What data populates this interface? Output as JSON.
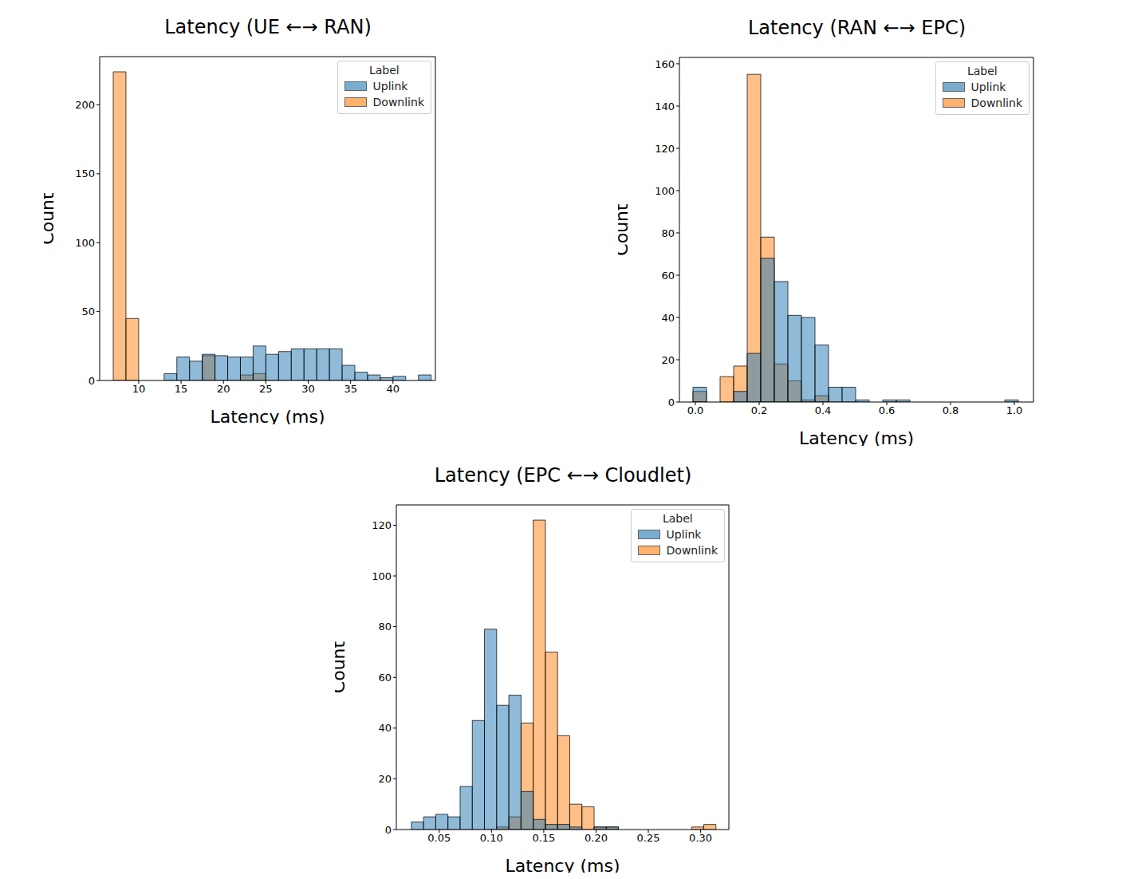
{
  "chart_data": [
    {
      "type": "histogram",
      "title": "Latency (UE ←→ RAN)",
      "x_label": "Latency (ms)",
      "y_label": "Count",
      "legend_title": "Label",
      "legend": "upper right",
      "xlim": [
        5.4,
        45
      ],
      "xticks": [
        10,
        15,
        20,
        25,
        30,
        35,
        40
      ],
      "ylim": [
        0,
        235
      ],
      "yticks": [
        0,
        50,
        100,
        150,
        200
      ],
      "series": [
        {
          "name": "Uplink",
          "color": "#1f77b4",
          "bins": [
            13,
            14.5,
            16,
            17.5,
            19,
            20.5,
            22,
            23.5,
            25,
            26.5,
            28,
            29.5,
            31,
            32.5,
            34,
            35.5,
            37,
            38.5,
            40,
            41.5,
            43,
            44.5
          ],
          "values": [
            5,
            17,
            14,
            19,
            18,
            17,
            17,
            25,
            19,
            21,
            23,
            23,
            23,
            23,
            11,
            6,
            4,
            2,
            3,
            0,
            4
          ]
        },
        {
          "name": "Downlink",
          "color": "#ff7f0e",
          "bins": [
            7,
            8.5,
            10,
            11.5,
            13,
            14.5,
            16,
            17.5,
            19,
            20.5,
            22,
            23.5,
            25
          ],
          "values": [
            224,
            45,
            0,
            0,
            0,
            0,
            0,
            18,
            0,
            0,
            4,
            5
          ]
        }
      ]
    },
    {
      "type": "histogram",
      "title": "Latency (RAN ←→ EPC)",
      "x_label": "Latency (ms)",
      "y_label": "Count",
      "legend_title": "Label",
      "legend": "upper right",
      "xlim": [
        -0.05,
        1.06
      ],
      "xticks": [
        {
          "value": 0,
          "label": "0.0"
        },
        {
          "value": 0.2,
          "label": "0.2"
        },
        {
          "value": 0.4,
          "label": "0.4"
        },
        {
          "value": 0.6,
          "label": "0.6"
        },
        {
          "value": 0.8,
          "label": "0.8"
        },
        {
          "value": 1,
          "label": "1.0"
        }
      ],
      "ylim": [
        0,
        163
      ],
      "yticks": [
        0,
        20,
        40,
        60,
        80,
        100,
        120,
        140,
        160
      ],
      "series": [
        {
          "name": "Uplink",
          "color": "#1f77b4",
          "bins": [
            -0.0075,
            0.035,
            0.0775,
            0.12,
            0.1625,
            0.205,
            0.2475,
            0.29,
            0.3325,
            0.375,
            0.4175,
            0.46,
            0.5025,
            0.545,
            0.5875,
            0.63,
            0.6725,
            0.715,
            0.7575,
            0.8,
            0.8425,
            0.885,
            0.9275,
            0.97,
            1.0125
          ],
          "values": [
            7,
            0,
            0,
            5,
            23,
            68,
            57,
            41,
            40,
            27,
            7,
            7,
            1,
            0,
            1,
            1,
            0,
            0,
            0,
            0,
            0,
            0,
            0,
            1
          ]
        },
        {
          "name": "Downlink",
          "color": "#ff7f0e",
          "bins": [
            -0.0075,
            0.035,
            0.0775,
            0.12,
            0.1625,
            0.205,
            0.2475,
            0.29,
            0.3325,
            0.375,
            0.4175,
            0.46,
            0.5025,
            0.545,
            0.5875,
            0.63,
            0.6725,
            0.715,
            0.7575,
            0.8,
            0.8425,
            0.885,
            0.9275,
            0.97,
            1.0125
          ],
          "values": [
            5,
            0,
            12,
            17,
            155,
            78,
            18,
            10,
            1,
            3,
            0,
            0,
            0,
            0,
            0,
            0,
            0,
            0,
            0,
            0,
            0,
            0,
            0,
            0
          ]
        }
      ]
    },
    {
      "type": "histogram",
      "title": "Latency (EPC ←→ Cloudlet)",
      "x_label": "Latency (ms)",
      "y_label": "Count",
      "legend_title": "Label",
      "legend": "upper right",
      "xlim": [
        0.009,
        0.327
      ],
      "xticks": [
        {
          "value": 0.05,
          "label": "0.05"
        },
        {
          "value": 0.1,
          "label": "0.10"
        },
        {
          "value": 0.15,
          "label": "0.15"
        },
        {
          "value": 0.2,
          "label": "0.20"
        },
        {
          "value": 0.25,
          "label": "0.25"
        },
        {
          "value": 0.3,
          "label": "0.30"
        }
      ],
      "ylim": [
        0,
        128
      ],
      "yticks": [
        0,
        20,
        40,
        60,
        80,
        100,
        120
      ],
      "series": [
        {
          "name": "Uplink",
          "color": "#1f77b4",
          "bins": [
            0.0234,
            0.03505,
            0.0467,
            0.05835,
            0.07,
            0.08165,
            0.0933,
            0.10495,
            0.1166,
            0.12825,
            0.1399,
            0.15155,
            0.1632,
            0.17485,
            0.1865,
            0.19815,
            0.2098,
            0.22145,
            0.2331,
            0.24475,
            0.2564,
            0.26805,
            0.2797,
            0.29135,
            0.303,
            0.31465
          ],
          "values": [
            3,
            5,
            6,
            5,
            17,
            43,
            79,
            49,
            53,
            15,
            4,
            2,
            2,
            1,
            0,
            1,
            1,
            0,
            0,
            0,
            0,
            0,
            0,
            0,
            0
          ]
        },
        {
          "name": "Downlink",
          "color": "#ff7f0e",
          "bins": [
            0.0234,
            0.03505,
            0.0467,
            0.05835,
            0.07,
            0.08165,
            0.0933,
            0.10495,
            0.1166,
            0.12825,
            0.1399,
            0.15155,
            0.1632,
            0.17485,
            0.1865,
            0.19815,
            0.2098,
            0.22145,
            0.2331,
            0.24475,
            0.2564,
            0.26805,
            0.2797,
            0.29135,
            0.303,
            0.31465
          ],
          "values": [
            0,
            0,
            0,
            0,
            0,
            0,
            0,
            1,
            5,
            42,
            122,
            70,
            37,
            10,
            9,
            1,
            1,
            0,
            0,
            0,
            0,
            0,
            0,
            1,
            2
          ]
        }
      ]
    }
  ]
}
